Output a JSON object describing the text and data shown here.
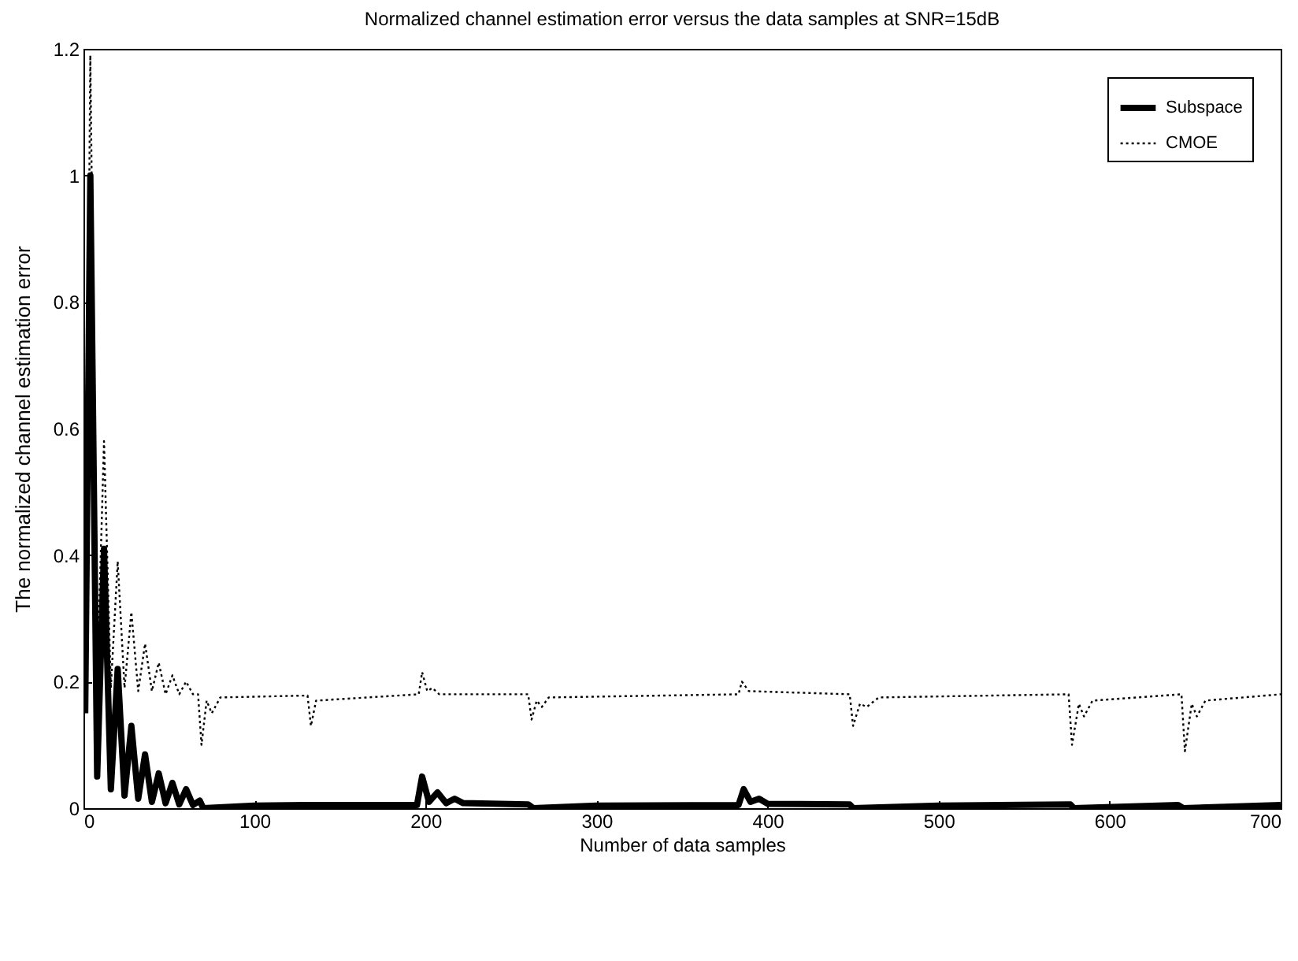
{
  "chart_data": {
    "type": "line",
    "title": "Normalized channel estimation error versus the data samples at SNR=15dB",
    "xlabel": "Number of data samples",
    "ylabel": "The normalized channel estimation error",
    "xlim": [
      0,
      700
    ],
    "xticks": [
      0,
      100,
      200,
      300,
      400,
      500,
      600,
      700
    ],
    "ylim": [
      0,
      1.2
    ],
    "yticks": [
      0,
      0.2,
      0.4,
      0.6,
      0.8,
      1,
      1.2
    ],
    "grid": false,
    "legend": "top right",
    "marker": "none",
    "series": [
      {
        "name": "Subspace",
        "color": "#000000",
        "line_style": "solid",
        "x": [
          1,
          4,
          8,
          12,
          16,
          20,
          24,
          28,
          32,
          36,
          40,
          44,
          48,
          52,
          56,
          60,
          64,
          68,
          70,
          100,
          130,
          195,
          198,
          202,
          207,
          212,
          217,
          222,
          260,
          263,
          300,
          383,
          386,
          390,
          395,
          400,
          448,
          450,
          500,
          577,
          579,
          640,
          643,
          700
        ],
        "values": [
          0.15,
          1.0,
          0.05,
          0.41,
          0.03,
          0.22,
          0.02,
          0.13,
          0.015,
          0.085,
          0.01,
          0.055,
          0.008,
          0.04,
          0.006,
          0.03,
          0.005,
          0.012,
          0,
          0.004,
          0.005,
          0.005,
          0.05,
          0.01,
          0.025,
          0.008,
          0.015,
          0.008,
          0.006,
          0,
          0.004,
          0.005,
          0.03,
          0.01,
          0.015,
          0.007,
          0.006,
          0,
          0.004,
          0.006,
          0,
          0.005,
          0,
          0.005
        ]
      },
      {
        "name": "CMOE",
        "color": "#000000",
        "line_style": "dotted",
        "x": [
          1,
          4,
          8,
          12,
          16,
          20,
          24,
          28,
          32,
          36,
          40,
          44,
          48,
          52,
          56,
          60,
          64,
          67,
          69,
          72,
          75,
          80,
          131,
          133,
          136,
          196,
          198,
          201,
          204,
          208,
          260,
          262,
          265,
          268,
          272,
          383,
          385,
          389,
          448,
          450,
          454,
          458,
          465,
          576,
          578,
          582,
          585,
          590,
          642,
          644,
          648,
          651,
          656,
          700
        ],
        "values": [
          0.18,
          1.19,
          0.2,
          0.58,
          0.19,
          0.39,
          0.19,
          0.31,
          0.185,
          0.26,
          0.185,
          0.23,
          0.18,
          0.21,
          0.18,
          0.2,
          0.18,
          0.18,
          0.1,
          0.17,
          0.15,
          0.175,
          0.178,
          0.13,
          0.17,
          0.18,
          0.215,
          0.185,
          0.19,
          0.18,
          0.18,
          0.14,
          0.17,
          0.16,
          0.175,
          0.18,
          0.2,
          0.185,
          0.18,
          0.13,
          0.165,
          0.16,
          0.175,
          0.18,
          0.1,
          0.165,
          0.145,
          0.17,
          0.18,
          0.09,
          0.165,
          0.145,
          0.17,
          0.18
        ]
      }
    ]
  }
}
